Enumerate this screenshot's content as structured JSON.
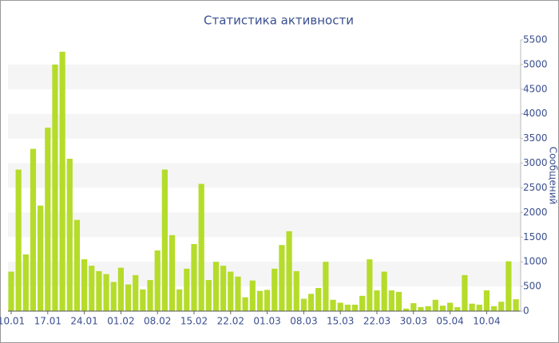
{
  "chart_data": {
    "type": "bar",
    "title": "Статистика активности",
    "y_label": "Сообщений",
    "categories": [
      "10.01",
      null,
      null,
      null,
      null,
      "17.01",
      null,
      null,
      null,
      null,
      "24.01",
      null,
      null,
      null,
      null,
      "01.02",
      null,
      null,
      null,
      null,
      "08.02",
      null,
      null,
      null,
      null,
      "15.02",
      null,
      null,
      null,
      null,
      "22.02",
      null,
      null,
      null,
      null,
      "01.03",
      null,
      null,
      null,
      null,
      "08.03",
      null,
      null,
      null,
      null,
      "15.03",
      null,
      null,
      null,
      null,
      "22.03",
      null,
      null,
      null,
      null,
      "30.03",
      null,
      null,
      null,
      null,
      "05.04",
      null,
      null,
      null,
      null,
      "10.04",
      null,
      null,
      null,
      null
    ],
    "values": [
      800,
      2870,
      1150,
      3290,
      2140,
      3720,
      5000,
      5260,
      3090,
      1850,
      1050,
      920,
      810,
      750,
      590,
      880,
      540,
      730,
      440,
      630,
      1230,
      2870,
      1540,
      440,
      860,
      1360,
      2580,
      630,
      1000,
      920,
      800,
      700,
      280,
      620,
      410,
      430,
      860,
      1340,
      1620,
      810,
      250,
      350,
      470,
      1000,
      230,
      170,
      130,
      130,
      310,
      1050,
      420,
      800,
      420,
      390,
      50,
      160,
      80,
      100,
      230,
      110,
      170,
      80,
      730,
      150,
      130,
      420,
      100,
      190,
      1010,
      240
    ],
    "color": "#b5dc2a",
    "ylim": [
      0,
      5500
    ],
    "yticks": [
      0,
      500,
      1000,
      1500,
      2000,
      2500,
      3000,
      3500,
      4000,
      4500,
      5000,
      5500
    ],
    "alternate_bands": true
  }
}
